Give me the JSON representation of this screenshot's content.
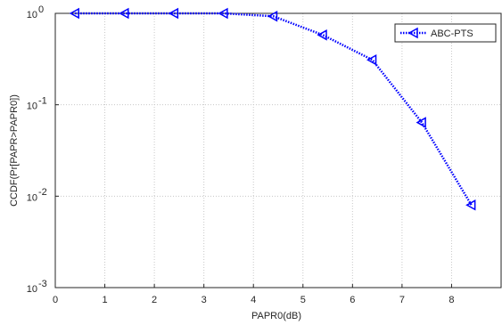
{
  "chart_data": {
    "type": "line",
    "x_label": "PAPR0(dB)",
    "y_label": "CCDF(Pr[PAPR>PAPR0])",
    "x": [
      0.4,
      1.4,
      2.4,
      3.4,
      4.4,
      5.4,
      6.4,
      7.4,
      8.4
    ],
    "series": [
      {
        "name": "ABC-PTS",
        "color": "#0000ff",
        "values": [
          1,
          1,
          1,
          1,
          0.93,
          0.58,
          0.31,
          0.064,
          0.008
        ]
      }
    ],
    "xlim": [
      0,
      9
    ],
    "xticks": [
      0,
      1,
      2,
      3,
      4,
      5,
      6,
      7,
      8
    ],
    "ylim": [
      0.001,
      1
    ],
    "log_y": true,
    "yticks": [
      {
        "value": 0.001,
        "label": "10",
        "power": "-3"
      },
      {
        "value": 0.01,
        "label": "10",
        "power": "-2"
      },
      {
        "value": 0.1,
        "label": "10",
        "power": "-1"
      },
      {
        "value": 1,
        "label": "10",
        "power": "0"
      }
    ],
    "grid": true,
    "legend": "top-right"
  }
}
